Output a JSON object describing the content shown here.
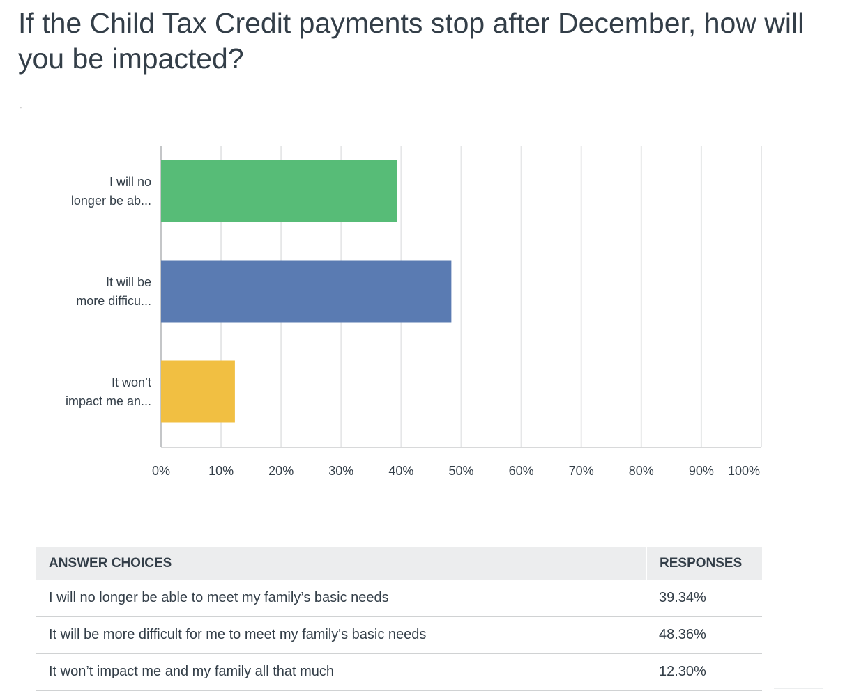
{
  "title": "If the Child Tax Credit payments stop after December, how will you be impacted?",
  "subtitle_mark": "'",
  "chart_data": {
    "type": "bar",
    "orientation": "horizontal",
    "categories": [
      "I will no longer be ab...",
      "It will be more difficu...",
      "It won’t impact me an..."
    ],
    "category_lines": [
      [
        "I will no",
        "longer be ab..."
      ],
      [
        "It will be",
        "more difficu..."
      ],
      [
        "It won’t",
        "impact me an..."
      ]
    ],
    "values": [
      39.34,
      48.36,
      12.3
    ],
    "colors": [
      "#57bc77",
      "#5a7bb2",
      "#f1bf42"
    ],
    "xlim": [
      0,
      100
    ],
    "ticks": [
      0,
      10,
      20,
      30,
      40,
      50,
      60,
      70,
      80,
      90,
      100
    ],
    "tick_labels": [
      "0%",
      "10%",
      "20%",
      "30%",
      "40%",
      "50%",
      "60%",
      "70%",
      "80%",
      "90%",
      "100%"
    ],
    "grid": true
  },
  "table": {
    "headers": [
      "ANSWER CHOICES",
      "RESPONSES"
    ],
    "rows": [
      {
        "choice": "I will no longer be able to meet my family’s basic needs",
        "response": "39.34%"
      },
      {
        "choice": "It will be more difficult for me to meet my family's basic needs",
        "response": "48.36%"
      },
      {
        "choice": "It won’t impact me and my family all that much",
        "response": "12.30%"
      }
    ]
  }
}
